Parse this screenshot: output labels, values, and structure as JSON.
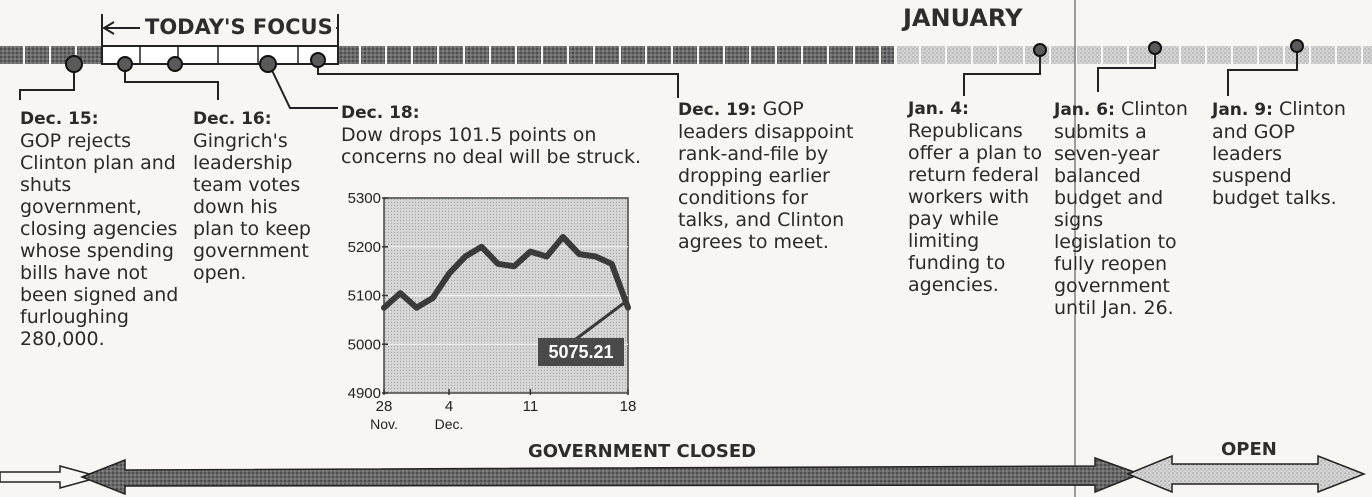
{
  "headers": {
    "todays_focus": "TODAY'S FOCUS",
    "january": "JANUARY",
    "government_closed": "GOVERNMENT CLOSED",
    "open": "OPEN"
  },
  "events": [
    {
      "id": "dec15",
      "date": "Dec. 15:",
      "text": "GOP rejects Clinton plan and shuts government, closing agencies whose spending bills have not been signed and furloughing 280,000."
    },
    {
      "id": "dec16",
      "date": "Dec. 16:",
      "text": "Gingrich's leadership team votes down his plan to keep government open."
    },
    {
      "id": "dec18",
      "date": "Dec. 18:",
      "text": "Dow drops 101.5 points on concerns no deal will be struck."
    },
    {
      "id": "dec19",
      "date": "Dec. 19:",
      "text": "GOP leaders disappoint rank-and-file by dropping earlier conditions for talks, and Clinton agrees to meet."
    },
    {
      "id": "jan4",
      "date": "Jan. 4:",
      "text": "Republicans offer a plan to return federal workers with pay while limiting funding to agencies."
    },
    {
      "id": "jan6",
      "date": "Jan. 6:",
      "text": "Clinton submits a seven-year balanced budget and signs legislation to fully reopen government until Jan. 26."
    },
    {
      "id": "jan9",
      "date": "Jan. 9:",
      "text": "Clinton and GOP leaders suspend budget talks."
    }
  ],
  "colors": {
    "ink": "#1b1b1b",
    "band_dark": "#5a5a5a",
    "band_light": "#b9b9b9",
    "chart_bg": "#cfcfcf",
    "label_bg": "#4a4a4a"
  },
  "chart_data": {
    "type": "line",
    "x": [
      1,
      2,
      3,
      4,
      5,
      6,
      7,
      8,
      9,
      10,
      11,
      12,
      13,
      14,
      15,
      16
    ],
    "values": [
      5075,
      5105,
      5075,
      5095,
      5145,
      5180,
      5200,
      5165,
      5160,
      5190,
      5180,
      5220,
      5185,
      5180,
      5165,
      5075.21
    ],
    "ylim": [
      4900,
      5300
    ],
    "yticks": [
      "5300",
      "5200",
      "5100",
      "5000",
      "4900"
    ],
    "xticks": [
      {
        "label": "28",
        "sub": "Nov.",
        "x": 1
      },
      {
        "label": "4",
        "sub": "Dec.",
        "x": 5
      },
      {
        "label": "11",
        "sub": "",
        "x": 10
      },
      {
        "label": "18",
        "sub": "",
        "x": 16
      }
    ],
    "end_label": "5075.21",
    "grid": true
  }
}
